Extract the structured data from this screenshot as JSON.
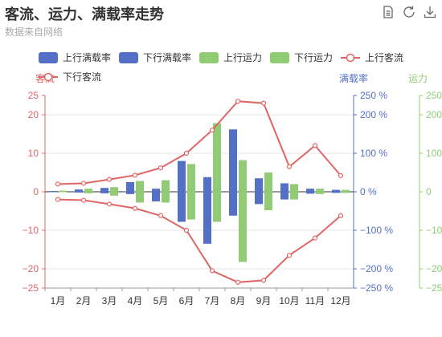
{
  "title": "客流、运力、满载率走势",
  "subtitle": "数据来自网络",
  "toolbox": [
    {
      "name": "data-view-icon"
    },
    {
      "name": "restore-icon"
    },
    {
      "name": "save-image-icon"
    }
  ],
  "colors": {
    "blue": "#5470c6",
    "green": "#91cc75",
    "red": "#e06666",
    "text": "#333333",
    "grid": "#e6e6e6"
  },
  "chart_data": {
    "type": "bar",
    "categories": [
      "1月",
      "2月",
      "3月",
      "4月",
      "5月",
      "6月",
      "7月",
      "8月",
      "9月",
      "10月",
      "11月",
      "12月"
    ],
    "legend": [
      "上行满载率",
      "下行满载率",
      "上行运力",
      "下行运力",
      "上行客流",
      "下行客流"
    ],
    "axes": {
      "left": {
        "name": "客流",
        "min": -25,
        "max": 25,
        "ticks": [
          -25,
          -20,
          -10,
          0,
          10,
          20,
          25
        ],
        "labels": [
          "−25",
          "−20",
          "−10",
          "0",
          "10",
          "20",
          "25"
        ]
      },
      "right1": {
        "name": "满载率",
        "min": -250,
        "max": 250,
        "ticks": [
          -250,
          -200,
          -100,
          0,
          100,
          200,
          250
        ],
        "labels": [
          "−250 %",
          "−200 %",
          "−100 %",
          "0 %",
          "100 %",
          "200 %",
          "250 %"
        ]
      },
      "right2": {
        "name": "运力",
        "min": -250,
        "max": 250,
        "ticks": [
          -250,
          -200,
          -100,
          0,
          100,
          200,
          250
        ],
        "labels": [
          "−250",
          "−200",
          "−100",
          "0",
          "100",
          "200",
          "250"
        ]
      }
    },
    "series": [
      {
        "name": "上行满载率",
        "type": "bar",
        "axis": "right1",
        "color": "#5470c6",
        "values": [
          2,
          6,
          10,
          25,
          8,
          80,
          38,
          162,
          35,
          22,
          8,
          5
        ]
      },
      {
        "name": "下行满载率",
        "type": "bar",
        "axis": "right1",
        "color": "#5470c6",
        "values": [
          -1,
          -2,
          -4,
          -6,
          -25,
          -78,
          -135,
          -62,
          -32,
          -20,
          -5,
          -3
        ]
      },
      {
        "name": "上行运力",
        "type": "bar",
        "axis": "right2",
        "color": "#91cc75",
        "values": [
          3,
          8,
          12,
          28,
          30,
          72,
          178,
          82,
          50,
          20,
          8,
          5
        ]
      },
      {
        "name": "下行运力",
        "type": "bar",
        "axis": "right2",
        "color": "#91cc75",
        "values": [
          -1,
          -4,
          -10,
          -28,
          -28,
          -72,
          -78,
          -182,
          -48,
          -20,
          -6,
          -3
        ]
      },
      {
        "name": "上行客流",
        "type": "line",
        "axis": "left",
        "color": "#e06666",
        "values": [
          2,
          2.2,
          3.2,
          4.3,
          6.2,
          10,
          16,
          23.5,
          23,
          6.5,
          12,
          4.2
        ]
      },
      {
        "name": "下行客流",
        "type": "line",
        "axis": "left",
        "color": "#e06666",
        "values": [
          -2,
          -2.2,
          -3.2,
          -4.3,
          -6.2,
          -10,
          -20.5,
          -23.5,
          -23,
          -16.5,
          -12,
          -6.2
        ]
      }
    ]
  }
}
